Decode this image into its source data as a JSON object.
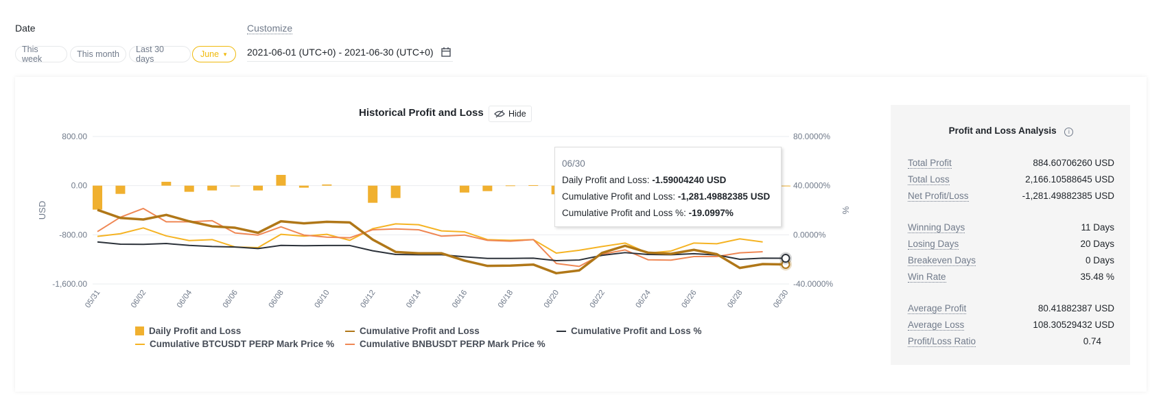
{
  "filter": {
    "date_label": "Date",
    "presets": [
      "This week",
      "This month",
      "Last 30 days"
    ],
    "selected": "June",
    "customize_label": "Customize",
    "range": "2021-06-01 (UTC+0) - 2021-06-30 (UTC+0)"
  },
  "chart_header": {
    "title": "Historical Profit and Loss",
    "hide_label": "Hide"
  },
  "tooltip": {
    "date": "06/30",
    "rows": [
      {
        "label": "Daily Profit and Loss: ",
        "value": "-1.59004240 USD"
      },
      {
        "label": "Cumulative Profit and Loss: ",
        "value": "-1,281.49882385 USD"
      },
      {
        "label": "Cumulative Profit and Loss %: ",
        "value": "-19.0997%"
      }
    ]
  },
  "colors": {
    "daily": "#f0b02f",
    "cumulative": "#b07718",
    "cumulative_pct": "#2b3139",
    "btc": "#f5b323",
    "bnb": "#ef8754"
  },
  "chart_data": {
    "type": "bar+line",
    "title": "Historical Profit and Loss",
    "ylabel": "USD",
    "y2label": "%",
    "ylim": [
      -1600,
      800
    ],
    "y2lim": [
      -40,
      80
    ],
    "yticks": [
      "800.00",
      "0.00",
      "-800.00",
      "-1,600.00"
    ],
    "y2ticks": [
      "80.0000%",
      "40.0000%",
      "0.0000%",
      "-40.0000%"
    ],
    "x": [
      "05/31",
      "06/01",
      "06/02",
      "06/03",
      "06/04",
      "06/05",
      "06/06",
      "06/07",
      "06/08",
      "06/09",
      "06/10",
      "06/11",
      "06/12",
      "06/13",
      "06/14",
      "06/15",
      "06/16",
      "06/17",
      "06/18",
      "06/19",
      "06/20",
      "06/21",
      "06/22",
      "06/23",
      "06/24",
      "06/25",
      "06/26",
      "06/27",
      "06/28",
      "06/29",
      "06/30"
    ],
    "xticks": [
      "05/31",
      "06/02",
      "06/04",
      "06/06",
      "06/08",
      "06/10",
      "06/12",
      "06/14",
      "06/16",
      "06/18",
      "06/20",
      "06/22",
      "06/24",
      "06/26",
      "06/28",
      "06/30"
    ],
    "series": [
      {
        "name": "Daily Profit and Loss",
        "type": "bar",
        "axis": "left",
        "values": [
          -390,
          -134,
          0,
          63,
          -100,
          -78,
          -10,
          -78,
          175,
          -33,
          19,
          0,
          -279,
          -201,
          0,
          0,
          -112,
          -89,
          4,
          8,
          -141,
          45,
          286,
          115,
          -111,
          -19,
          64,
          -71,
          -223,
          63,
          -1.59
        ]
      },
      {
        "name": "Cumulative Profit and Loss",
        "type": "line",
        "axis": "left",
        "values": [
          -394,
          -525,
          -551,
          -476,
          -580,
          -662,
          -685,
          -767,
          -580,
          -614,
          -588,
          -599,
          -878,
          -1079,
          -1101,
          -1101,
          -1220,
          -1306,
          -1302,
          -1284,
          -1425,
          -1380,
          -1094,
          -979,
          -1090,
          -1109,
          -1045,
          -1116,
          -1339,
          -1276,
          -1281.5
        ]
      },
      {
        "name": "Cumulative Profit and Loss %",
        "type": "line",
        "axis": "right",
        "values": [
          -5.8,
          -7.6,
          -7.8,
          -7.1,
          -8.6,
          -9.5,
          -9.9,
          -11.2,
          -8.6,
          -8.9,
          -8.7,
          -8.7,
          -13.0,
          -16.0,
          -16.2,
          -16.2,
          -17.9,
          -19.2,
          -19.2,
          -19.0,
          -21.0,
          -20.5,
          -16.7,
          -14.5,
          -16.0,
          -16.2,
          -15.4,
          -16.4,
          -19.9,
          -19.0,
          -19.1
        ]
      },
      {
        "name": "Cumulative BTCUSDT PERP Mark Price %",
        "type": "line",
        "axis": "right",
        "values": [
          -1.3,
          0.9,
          5.6,
          -0.9,
          -4.7,
          -3.9,
          -9.9,
          -10.4,
          0.4,
          -1.1,
          0.4,
          -4.5,
          5.0,
          8.9,
          8.2,
          3.2,
          2.4,
          -3.9,
          -4.5,
          -3.9,
          -14.9,
          -12.6,
          -9.5,
          -6.7,
          -14.9,
          -13.2,
          -6.7,
          -7.3,
          -3.3,
          -5.8,
          null
        ]
      },
      {
        "name": "Cumulative BNBUSDT PERP Mark Price %",
        "type": "line",
        "axis": "right",
        "values": [
          2.6,
          14.3,
          21.4,
          10.6,
          10.6,
          11.5,
          1.5,
          -0.2,
          6.5,
          -0.2,
          -1.9,
          -2.4,
          4.1,
          4.8,
          4.1,
          -1.1,
          -0.2,
          -4.5,
          -5.2,
          -3.9,
          -23.3,
          -25.7,
          -15.8,
          -12.3,
          -20.3,
          -20.6,
          -17.7,
          -17.7,
          -14.7,
          -13.8,
          null
        ]
      }
    ],
    "legend": "bottom"
  },
  "analysis": {
    "title": "Profit and Loss Analysis",
    "rows": [
      {
        "k": "Total Profit",
        "v": "884.60706260 USD"
      },
      {
        "k": "Total Loss",
        "v": "2,166.10588645 USD"
      },
      {
        "k": "Net Profit/Loss",
        "v": "-1,281.49882385 USD"
      },
      {
        "k": "Winning Days",
        "v": "11 Days"
      },
      {
        "k": "Losing Days",
        "v": "20 Days"
      },
      {
        "k": "Breakeven Days",
        "v": "0 Days"
      },
      {
        "k": "Win Rate",
        "v": "35.48 %"
      },
      {
        "k": "Average Profit",
        "v": "80.41882387 USD"
      },
      {
        "k": "Average Loss",
        "v": "108.30529432 USD"
      },
      {
        "k": "Profit/Loss Ratio",
        "v": "0.74"
      }
    ]
  }
}
